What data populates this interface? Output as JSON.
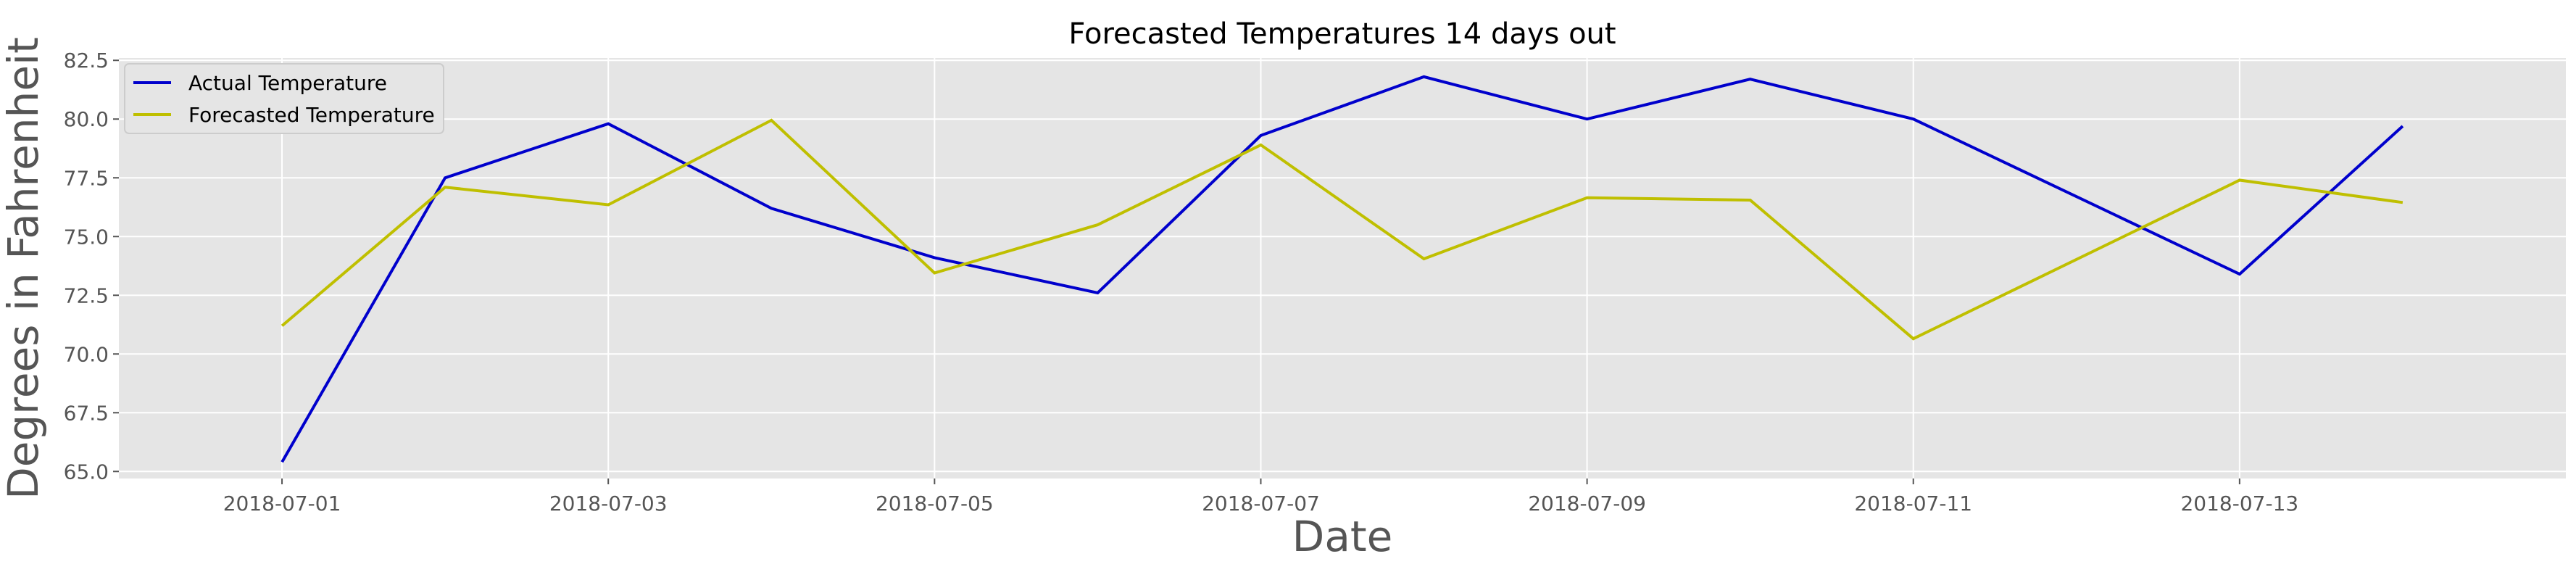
{
  "chart_data": {
    "type": "line",
    "title": "Forecasted Temperatures 14 days out",
    "xlabel": "Date",
    "ylabel": "Degrees in Fahrenheit",
    "x": [
      "2018-07-01",
      "2018-07-02",
      "2018-07-03",
      "2018-07-04",
      "2018-07-05",
      "2018-07-06",
      "2018-07-07",
      "2018-07-08",
      "2018-07-09",
      "2018-07-10",
      "2018-07-11",
      "2018-07-12",
      "2018-07-13",
      "2018-07-14"
    ],
    "x_tick_labels": [
      "2018-07-01",
      "2018-07-03",
      "2018-07-05",
      "2018-07-07",
      "2018-07-09",
      "2018-07-11",
      "2018-07-13"
    ],
    "y_tick_labels": [
      "65.0",
      "67.5",
      "70.0",
      "72.5",
      "75.0",
      "77.5",
      "80.0",
      "82.5"
    ],
    "xlim": [
      "2018-06-30",
      "2018-07-15"
    ],
    "ylim": [
      64.7,
      82.6
    ],
    "grid": true,
    "legend_position": "top-left",
    "series": [
      {
        "name": "Actual Temperature",
        "color": "#0000cc",
        "values": [
          65.4,
          77.5,
          79.8,
          76.2,
          74.1,
          72.6,
          79.3,
          81.8,
          80.0,
          81.7,
          80.0,
          null,
          73.4,
          79.7
        ]
      },
      {
        "name": "Forecasted Temperature",
        "color": "#bfbf00",
        "values": [
          71.2,
          77.1,
          76.35,
          79.95,
          73.45,
          75.5,
          78.9,
          74.05,
          76.65,
          76.55,
          70.65,
          null,
          77.4,
          76.45
        ]
      }
    ]
  }
}
